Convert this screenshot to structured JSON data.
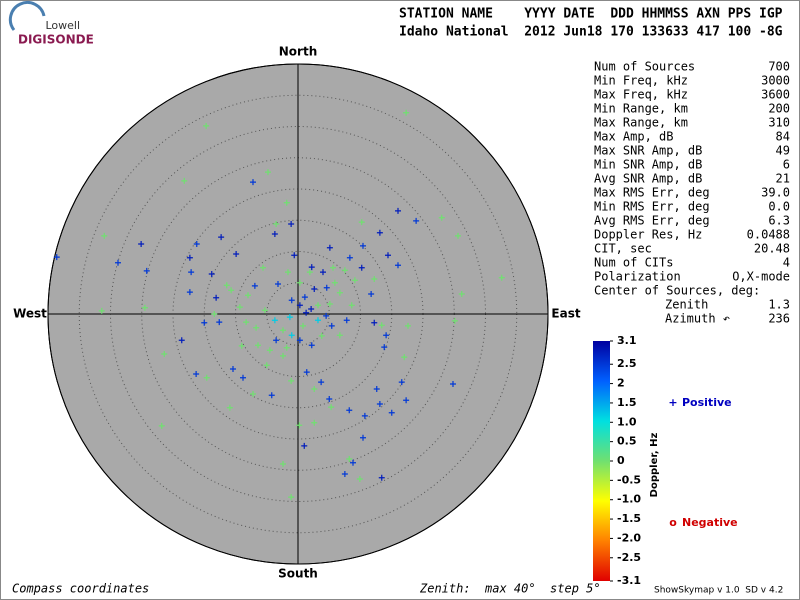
{
  "logo": {
    "top": "Lowell",
    "bottom": "DIGISONDE"
  },
  "header": {
    "line1": "STATION NAME    YYYY DATE  DDD HHMMSS AXN PPS IGP",
    "line2": "Idaho National  2012 Jun18 170 133633 417 100 -8G"
  },
  "chart_data": {
    "type": "skymap",
    "directions": {
      "north": "North",
      "south": "South",
      "west": "West",
      "east": "East"
    },
    "rlim": [
      0,
      40
    ],
    "rticks": [
      5,
      10,
      15,
      20,
      25,
      30,
      35,
      40
    ],
    "x": [
      -14.7,
      17.3,
      -18.2,
      -7.2,
      -4.8,
      -31.0,
      -25.1,
      -38.6,
      -28.8,
      -24.2,
      -17.3,
      -17.1,
      -17.3,
      -16.2,
      -12.3,
      -9.9,
      -13.8,
      -13.1,
      -12.6,
      -15.0,
      -18.6,
      -24.5,
      -31.4,
      -21.4,
      -16.3,
      -14.6,
      -10.4,
      -8.8,
      -9.0,
      -10.9,
      -21.8,
      -7.2,
      -4.2,
      -2.4,
      -1.1,
      1.4,
      3.7,
      2.6,
      5.0,
      5.3,
      8.2,
      10.7,
      13.1,
      15.0,
      17.3,
      0.2,
      2.6,
      10.4,
      1.0,
      -2.4,
      8.2,
      8.8,
      7.5,
      9.9,
      13.4,
      -1.1,
      16.6,
      12.6,
      17.0,
      13.8,
      14.1,
      13.4,
      12.2,
      17.6,
      25.1,
      26.2,
      32.6,
      24.8,
      25.6,
      16.0,
      18.9,
      23.0,
      13.1,
      10.2,
      10.4,
      14.4,
      16.0,
      10.2,
      12.2,
      11.7,
      8.3,
      5.1,
      5.6,
      4.0,
      2.2,
      -0.6,
      -3.7,
      -3.5,
      -1.1,
      -1.8,
      1.9,
      -1.6,
      -3.2,
      -5.6,
      -6.9,
      -8.0,
      -9.3,
      -8.3,
      -6.7,
      -5.3,
      -3.7,
      -2.4,
      -1.3,
      0.3,
      1.1,
      2.1,
      3.2,
      4.5,
      5.1,
      6.7,
      7.8,
      8.6,
      6.7,
      5.4,
      3.8,
      2.2,
      0.3,
      -1.8,
      -4.5,
      -6.4,
      -5.0,
      -3.5,
      -1.0,
      0.3,
      2.6,
      4.6,
      5.9,
      7.5,
      9.1,
      -11.4,
      -13.4,
      -10.7,
      0.8,
      -1.0,
      1.3,
      3.2
    ],
    "y": [
      30.1,
      32.2,
      21.3,
      21.1,
      22.7,
      12.5,
      11.2,
      9.1,
      8.2,
      6.9,
      9.0,
      6.7,
      3.5,
      11.2,
      12.3,
      9.6,
      6.4,
      2.6,
      -1.3,
      -1.4,
      -4.2,
      1.0,
      0.5,
      -6.4,
      -9.6,
      -10.2,
      -8.8,
      -10.2,
      -5.1,
      -15.0,
      -17.9,
      -12.8,
      -13.0,
      -6.7,
      -10.7,
      -9.3,
      -10.9,
      -12.0,
      -13.6,
      -14.9,
      -15.4,
      -16.3,
      -14.4,
      -15.8,
      -13.8,
      -17.8,
      -17.4,
      -19.8,
      -21.1,
      -24.0,
      -23.2,
      -23.8,
      -25.6,
      -26.4,
      -26.2,
      -29.3,
      -10.9,
      -12.0,
      -6.9,
      -5.3,
      -3.4,
      -1.8,
      -1.4,
      -1.9,
      -1.1,
      3.2,
      5.8,
      -11.2,
      12.5,
      16.5,
      14.9,
      15.4,
      13.0,
      14.7,
      10.9,
      9.4,
      7.8,
      7.4,
      5.6,
      3.2,
      9.0,
      10.6,
      7.4,
      6.7,
      7.5,
      9.4,
      12.8,
      14.4,
      14.4,
      17.8,
      6.7,
      6.7,
      4.8,
      7.4,
      4.5,
      3.0,
      1.1,
      -1.3,
      -2.2,
      0.6,
      -1.0,
      -2.6,
      -0.5,
      1.4,
      2.7,
      0.8,
      -1.0,
      -0.3,
      1.6,
      3.4,
      -1.0,
      1.4,
      -3.4,
      -1.9,
      -3.5,
      -5.0,
      -4.2,
      -5.4,
      -5.8,
      -5.0,
      -8.2,
      -4.2,
      2.2,
      5.0,
      4.0,
      4.2,
      5.0,
      7.0,
      5.4,
      4.6,
      0.0,
      3.8,
      -1.9,
      -3.4,
      0.2,
      1.4
    ],
    "doppler": [
      0,
      0,
      0,
      2.5,
      0,
      0,
      2.8,
      2.5,
      2.5,
      2.5,
      2.8,
      2.5,
      2.5,
      2.5,
      2.8,
      2.8,
      2.8,
      2.8,
      2.5,
      2.5,
      2.8,
      0,
      0,
      0,
      2.5,
      0,
      2.5,
      2.5,
      0,
      0,
      0,
      0,
      2.5,
      0,
      0,
      2.5,
      2.5,
      0,
      2.5,
      0,
      2.5,
      2.5,
      2.5,
      2.5,
      2.5,
      0,
      0,
      2.5,
      2.8,
      0,
      0,
      2.5,
      2.5,
      0,
      2.8,
      0,
      2.5,
      2.5,
      0,
      2.5,
      2.5,
      0,
      2.8,
      0,
      0,
      0,
      0,
      2.5,
      0,
      2.8,
      2.5,
      0,
      2.8,
      0,
      2.5,
      2.8,
      2.5,
      2.8,
      0,
      2.5,
      2.5,
      2.8,
      0,
      2.8,
      2.8,
      2.8,
      2.8,
      0,
      2.8,
      0,
      0,
      0,
      2.5,
      0,
      2.5,
      0,
      0,
      0,
      0,
      0,
      1.2,
      0,
      1.2,
      2.8,
      2.5,
      2.8,
      1.2,
      2.5,
      0,
      0,
      2.5,
      0,
      0,
      2.5,
      0,
      2.5,
      2.5,
      0,
      0,
      0,
      0,
      2.5,
      2.5,
      0,
      2.8,
      2.5,
      0,
      0,
      0,
      0,
      0,
      0,
      0,
      1.2,
      2.8,
      0
    ],
    "colorbar": {
      "title": "Doppler, Hz",
      "lim": [
        -3.1,
        3.1
      ],
      "colors": [
        "#e00000",
        "#ff8000",
        "#ffff00",
        "#70e070",
        "#00e0e0",
        "#0060ff",
        "#0000a0"
      ],
      "ticks": [
        3.1,
        2.5,
        2,
        1.5,
        {
          "value": 1,
          "label": "1.0"
        },
        0.5,
        0,
        -0.5,
        {
          "value": -1,
          "label": "-1.0"
        },
        -1.5,
        {
          "value": -2,
          "label": "-2.0"
        },
        -2.5,
        -3.1
      ]
    },
    "legend": [
      {
        "symbol": "+",
        "name": "Positive",
        "color": "#0000c0"
      },
      {
        "symbol": "o",
        "name": "Negative",
        "color": "#d00000"
      }
    ]
  },
  "stats": {
    "rows": [
      [
        "Num of Sources",
        "700"
      ],
      [
        "Min Freq, kHz",
        "3000"
      ],
      [
        "Max Freq, kHz",
        "3600"
      ],
      [
        "Min Range, km",
        "200"
      ],
      [
        "Max Range, km",
        "310"
      ],
      [
        "Max Amp, dB",
        "84"
      ],
      [
        "Max SNR Amp, dB",
        "49"
      ],
      [
        "Min SNR Amp, dB",
        "6"
      ],
      [
        "Avg SNR Amp, dB",
        "21"
      ],
      [
        "Max RMS Err, deg",
        "39.0"
      ],
      [
        "Min RMS Err, deg",
        "0.0"
      ],
      [
        "Avg RMS Err, deg",
        "6.3"
      ],
      [
        "Doppler Res, Hz",
        "0.0488"
      ],
      [
        "CIT, sec",
        "20.48"
      ],
      [
        "Num of CITs",
        "4"
      ],
      [
        "Polarization",
        "O,X-mode"
      ]
    ],
    "center_title": "Center of Sources, deg:",
    "center_rows": [
      [
        "Zenith",
        "1.3"
      ],
      [
        "Azimuth ↶",
        "236"
      ]
    ]
  },
  "footer": {
    "left": "Compass coordinates",
    "zenith": "Zenith:  max 40°  step 5°",
    "version": "ShowSkymap v 1.0  SD v 4.2"
  }
}
